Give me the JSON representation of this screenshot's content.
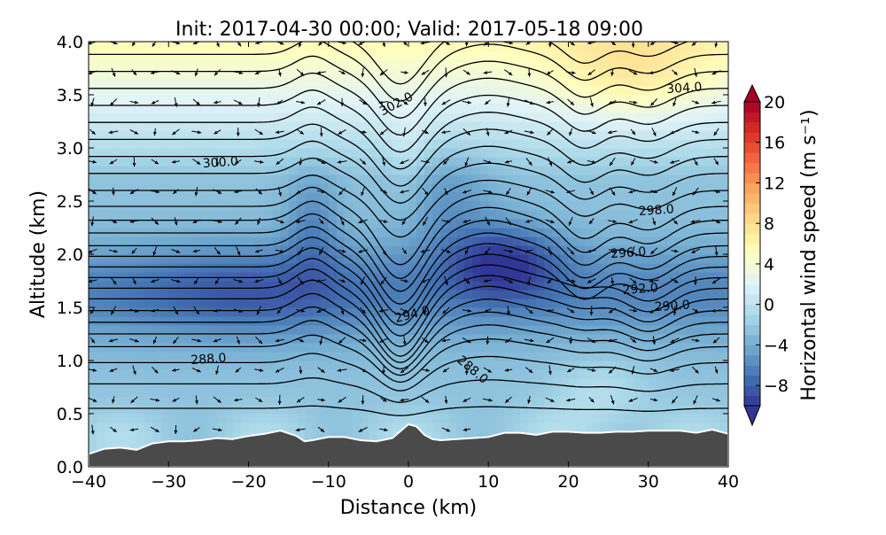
{
  "chart_data": {
    "type": "contour",
    "title": "Init: 2017-04-30 00:00; Valid: 2017-05-18 09:00",
    "xlabel": "Distance (km)",
    "ylabel": "Altitude (km)",
    "xlim": [
      -40,
      40
    ],
    "ylim": [
      0.0,
      4.0
    ],
    "x_ticks": [
      -40,
      -30,
      -20,
      -10,
      0,
      10,
      20,
      30,
      40
    ],
    "x_tick_labels": [
      "−40",
      "−30",
      "−20",
      "−10",
      "0",
      "10",
      "20",
      "30",
      "40"
    ],
    "y_ticks": [
      0.0,
      0.5,
      1.0,
      1.5,
      2.0,
      2.5,
      3.0,
      3.5,
      4.0
    ],
    "y_tick_labels": [
      "0.0",
      "0.5",
      "1.0",
      "1.5",
      "2.0",
      "2.5",
      "3.0",
      "3.5",
      "4.0"
    ],
    "filled_variable": "Horizontal wind speed",
    "colorbar": {
      "label": "Horizontal wind speed (m s⁻¹)",
      "range": [
        -10,
        20
      ],
      "ticks": [
        -8,
        -4,
        0,
        4,
        8,
        12,
        16,
        20
      ],
      "tick_labels": [
        "−8",
        "−4",
        "0",
        "4",
        "8",
        "12",
        "16",
        "20"
      ],
      "extend": "both",
      "colors": [
        "#313695",
        "#4575b4",
        "#74add1",
        "#abd9e9",
        "#e0f3f8",
        "#ffffbf",
        "#fee090",
        "#fdae61",
        "#f46d43",
        "#d73027",
        "#a50026"
      ]
    },
    "contour_labels": [
      {
        "text": "302.0",
        "x": -1.5,
        "y": 3.41
      },
      {
        "text": "304.0",
        "x": 34.5,
        "y": 3.56
      },
      {
        "text": "300.0",
        "x": -23.5,
        "y": 2.86
      },
      {
        "text": "298.0",
        "x": 31.0,
        "y": 2.41
      },
      {
        "text": "296.0",
        "x": 27.5,
        "y": 2.01
      },
      {
        "text": "292.0",
        "x": 29.0,
        "y": 1.67
      },
      {
        "text": "290.0",
        "x": 33.0,
        "y": 1.51
      },
      {
        "text": "294.0",
        "x": 0.5,
        "y": 1.43
      },
      {
        "text": "288.0",
        "x": -25.0,
        "y": 1.01
      },
      {
        "text": "288.0",
        "x": 8.0,
        "y": 0.91
      }
    ],
    "terrain": [
      [
        -40,
        0.12
      ],
      [
        -38,
        0.17
      ],
      [
        -36,
        0.18
      ],
      [
        -34,
        0.16
      ],
      [
        -32,
        0.22
      ],
      [
        -30,
        0.24
      ],
      [
        -28,
        0.24
      ],
      [
        -26,
        0.25
      ],
      [
        -24,
        0.27
      ],
      [
        -22,
        0.26
      ],
      [
        -20,
        0.29
      ],
      [
        -18,
        0.31
      ],
      [
        -16,
        0.34
      ],
      [
        -14,
        0.29
      ],
      [
        -13,
        0.24
      ],
      [
        -12,
        0.25
      ],
      [
        -10,
        0.28
      ],
      [
        -8,
        0.28
      ],
      [
        -6,
        0.25
      ],
      [
        -4,
        0.24
      ],
      [
        -2,
        0.27
      ],
      [
        0,
        0.4
      ],
      [
        1,
        0.38
      ],
      [
        2,
        0.3
      ],
      [
        3,
        0.26
      ],
      [
        4,
        0.25
      ],
      [
        6,
        0.26
      ],
      [
        8,
        0.27
      ],
      [
        10,
        0.28
      ],
      [
        12,
        0.32
      ],
      [
        14,
        0.32
      ],
      [
        16,
        0.3
      ],
      [
        18,
        0.33
      ],
      [
        20,
        0.33
      ],
      [
        22,
        0.32
      ],
      [
        24,
        0.32
      ],
      [
        26,
        0.33
      ],
      [
        28,
        0.33
      ],
      [
        30,
        0.34
      ],
      [
        32,
        0.34
      ],
      [
        34,
        0.34
      ],
      [
        36,
        0.32
      ],
      [
        38,
        0.35
      ],
      [
        40,
        0.31
      ]
    ]
  }
}
